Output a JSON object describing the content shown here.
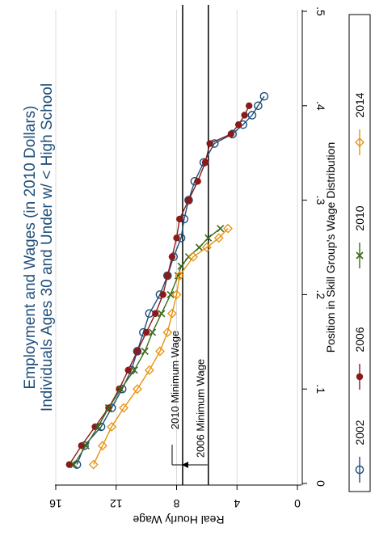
{
  "chart_data": {
    "type": "line",
    "title": "Employment and Wages (in 2010 Dollars)",
    "subtitle": "Individuals Ages 30 and Under w/ < High School",
    "xlabel": "Position in Skill Group's Wage Distribution",
    "ylabel": "Real Hourly Wage",
    "xlim": [
      0,
      0.5
    ],
    "ylim": [
      0,
      16
    ],
    "xticks": [
      0,
      0.1,
      0.2,
      0.3,
      0.4,
      0.5
    ],
    "xtick_labels": [
      "0",
      ".1",
      ".2",
      ".3",
      ".4",
      ".5"
    ],
    "yticks": [
      0,
      4,
      8,
      12,
      16
    ],
    "ytick_labels": [
      "0",
      "4",
      "8",
      "12",
      "16"
    ],
    "grid": true,
    "legend_position": "bottom",
    "reference_lines": [
      {
        "y": 7.6,
        "label": "2010 Minimum Wage"
      },
      {
        "y": 5.9,
        "label": "2006 Minimum Wage"
      }
    ],
    "series": [
      {
        "name": "2002",
        "color": "#1f4e79",
        "marker": "circle-hollow",
        "x": [
          0.02,
          0.04,
          0.06,
          0.08,
          0.1,
          0.12,
          0.14,
          0.16,
          0.18,
          0.2,
          0.22,
          0.24,
          0.26,
          0.28,
          0.3,
          0.32,
          0.34,
          0.36,
          0.37,
          0.38,
          0.39,
          0.4,
          0.41
        ],
        "y": [
          14.6,
          14.1,
          13.0,
          12.3,
          11.6,
          11.0,
          10.6,
          10.2,
          9.8,
          9.1,
          8.6,
          8.2,
          7.7,
          7.5,
          7.2,
          6.8,
          6.2,
          5.5,
          4.3,
          3.6,
          3.0,
          2.6,
          2.2
        ]
      },
      {
        "name": "2006",
        "color": "#8b1a1a",
        "marker": "circle-filled",
        "x": [
          0.02,
          0.04,
          0.06,
          0.08,
          0.1,
          0.12,
          0.14,
          0.16,
          0.18,
          0.2,
          0.22,
          0.24,
          0.26,
          0.28,
          0.3,
          0.32,
          0.34,
          0.36,
          0.37,
          0.38,
          0.39,
          0.4
        ],
        "y": [
          15.1,
          14.3,
          13.4,
          12.5,
          11.8,
          11.2,
          10.6,
          10.0,
          9.4,
          8.9,
          8.6,
          8.3,
          8.0,
          7.8,
          7.2,
          6.6,
          6.1,
          5.8,
          4.4,
          3.9,
          3.5,
          3.2
        ]
      },
      {
        "name": "2010",
        "color": "#3a6b1a",
        "marker": "x",
        "x": [
          0.02,
          0.04,
          0.06,
          0.08,
          0.1,
          0.12,
          0.14,
          0.16,
          0.18,
          0.2,
          0.22,
          0.23,
          0.24,
          0.25,
          0.26,
          0.27
        ],
        "y": [
          14.8,
          14.0,
          13.2,
          12.5,
          11.7,
          10.8,
          10.1,
          9.6,
          9.0,
          8.4,
          7.9,
          7.7,
          7.2,
          6.5,
          5.9,
          5.1
        ]
      },
      {
        "name": "2014",
        "color": "#e8920a",
        "marker": "diamond-hollow",
        "x": [
          0.02,
          0.04,
          0.06,
          0.08,
          0.1,
          0.12,
          0.14,
          0.16,
          0.18,
          0.2,
          0.22,
          0.24,
          0.25,
          0.26,
          0.27
        ],
        "y": [
          13.5,
          12.9,
          12.3,
          11.5,
          10.6,
          9.8,
          9.1,
          8.6,
          8.3,
          8.0,
          7.8,
          6.9,
          6.0,
          5.2,
          4.6
        ]
      }
    ]
  }
}
